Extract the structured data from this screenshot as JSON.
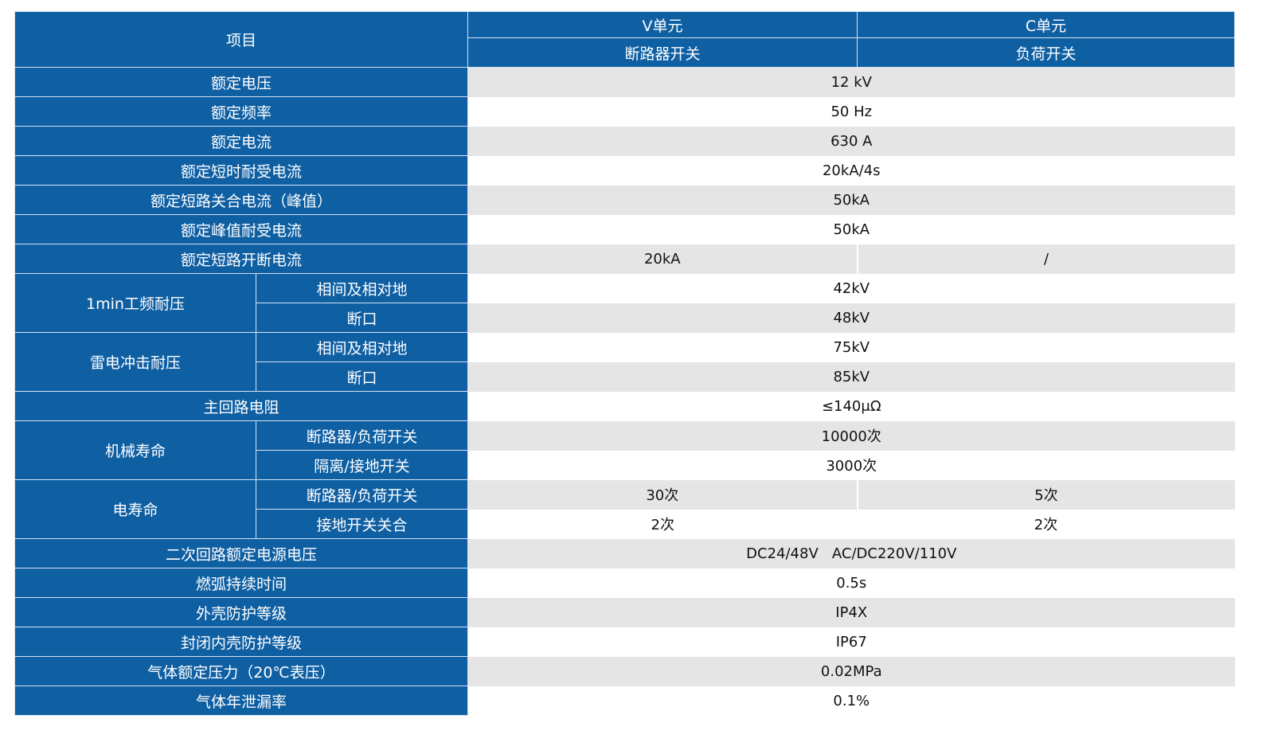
{
  "header": {
    "item": "项目",
    "v_unit": "V单元",
    "c_unit": "C单元",
    "v_switch": "断路器开关",
    "c_switch": "负荷开关"
  },
  "rows": {
    "rated_voltage": {
      "label": "额定电压",
      "value": "12 kV"
    },
    "rated_frequency": {
      "label": "额定频率",
      "value": "50 Hz"
    },
    "rated_current": {
      "label": "额定电流",
      "value": "630 A"
    },
    "short_time_withstand": {
      "label": "额定短时耐受电流",
      "value": "20kA/4s"
    },
    "short_circuit_making": {
      "label": "额定短路关合电流（峰值）",
      "value": "50kA"
    },
    "peak_withstand": {
      "label": "额定峰值耐受电流",
      "value": "50kA"
    },
    "short_circuit_breaking": {
      "label": "额定短路开断电流",
      "v": "20kA",
      "c": "/"
    },
    "power_freq": {
      "label": "1min工频耐压",
      "sub1": "相间及相对地",
      "val1": "42kV",
      "sub2": "断口",
      "val2": "48kV"
    },
    "lightning": {
      "label": "雷电冲击耐压",
      "sub1": "相间及相对地",
      "val1": "75kV",
      "sub2": "断口",
      "val2": "85kV"
    },
    "main_circuit_resistance": {
      "label": "主回路电阻",
      "value": "≤140μΩ"
    },
    "mechanical_life": {
      "label": "机械寿命",
      "sub1": "断路器/负荷开关",
      "val1": "10000次",
      "sub2": "隔离/接地开关",
      "val2": "3000次"
    },
    "electrical_life": {
      "label": "电寿命",
      "sub1": "断路器/负荷开关",
      "v1": "30次",
      "c1": "5次",
      "sub2": "接地开关关合",
      "v2": "2次",
      "c2": "2次"
    },
    "secondary_voltage": {
      "label": "二次回路额定电源电压",
      "value": "DC24/48V   AC/DC220V/110V"
    },
    "arc_duration": {
      "label": "燃弧持续时间",
      "value": "0.5s"
    },
    "enclosure_protection": {
      "label": "外壳防护等级",
      "value": "IP4X"
    },
    "sealed_protection": {
      "label": "封闭内壳防护等级",
      "value": "IP67"
    },
    "gas_pressure": {
      "label": "气体额定压力（20℃表压）",
      "value": "0.02MPa"
    },
    "gas_leak_rate": {
      "label": "气体年泄漏率",
      "value": "0.1%"
    }
  },
  "colors": {
    "header_blue": "#0f5fa3",
    "row_gray": "#e5e5e5"
  }
}
